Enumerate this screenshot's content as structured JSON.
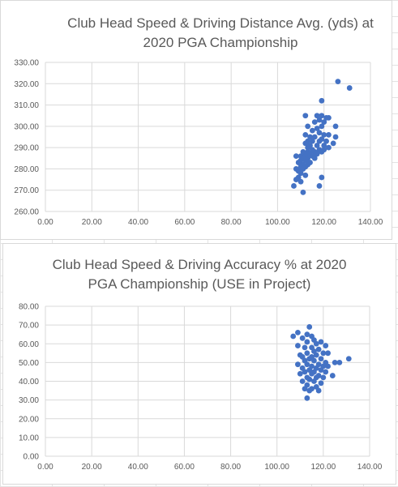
{
  "chart_data": [
    {
      "type": "scatter",
      "title": [
        "Club Head Speed & Driving Distance Avg. (yds) at",
        "2020 PGA Championship"
      ],
      "xlabel": "",
      "ylabel": "",
      "xlim": [
        0,
        140
      ],
      "ylim": [
        260,
        330
      ],
      "x_ticks": [
        "0.00",
        "20.00",
        "40.00",
        "60.00",
        "80.00",
        "100.00",
        "120.00",
        "140.00"
      ],
      "y_ticks": [
        "260.00",
        "270.00",
        "280.00",
        "290.00",
        "300.00",
        "310.00",
        "320.00",
        "330.00"
      ],
      "grid": true,
      "marker_color": "#4472c4",
      "points": [
        [
          126,
          321
        ],
        [
          131,
          318
        ],
        [
          119,
          312
        ],
        [
          112,
          305
        ],
        [
          117,
          305
        ],
        [
          119,
          305
        ],
        [
          121,
          304
        ],
        [
          122,
          304
        ],
        [
          120,
          302
        ],
        [
          116,
          302
        ],
        [
          118,
          303
        ],
        [
          125,
          300
        ],
        [
          113,
          300
        ],
        [
          119,
          300
        ],
        [
          117,
          299
        ],
        [
          115,
          298
        ],
        [
          112,
          296
        ],
        [
          118,
          297
        ],
        [
          120,
          296
        ],
        [
          122,
          296
        ],
        [
          125,
          295
        ],
        [
          114,
          295
        ],
        [
          116,
          295
        ],
        [
          119,
          294
        ],
        [
          113,
          293
        ],
        [
          115,
          293
        ],
        [
          118,
          293
        ],
        [
          121,
          293
        ],
        [
          124,
          292
        ],
        [
          112,
          292
        ],
        [
          114,
          291
        ],
        [
          117,
          291
        ],
        [
          120,
          291
        ],
        [
          122,
          290
        ],
        [
          113,
          290
        ],
        [
          115,
          289
        ],
        [
          118,
          289
        ],
        [
          120,
          289
        ],
        [
          111,
          288
        ],
        [
          113,
          288
        ],
        [
          116,
          288
        ],
        [
          119,
          288
        ],
        [
          112,
          287
        ],
        [
          114,
          287
        ],
        [
          117,
          287
        ],
        [
          110,
          286
        ],
        [
          112,
          286
        ],
        [
          115,
          286
        ],
        [
          108,
          286
        ],
        [
          111,
          285
        ],
        [
          113,
          285
        ],
        [
          116,
          285
        ],
        [
          110,
          284
        ],
        [
          112,
          284
        ],
        [
          114,
          283
        ],
        [
          109,
          283
        ],
        [
          111,
          282
        ],
        [
          113,
          282
        ],
        [
          110,
          281
        ],
        [
          112,
          281
        ],
        [
          108,
          280
        ],
        [
          111,
          280
        ],
        [
          109,
          279
        ],
        [
          110,
          278
        ],
        [
          112,
          277
        ],
        [
          109,
          276
        ],
        [
          108,
          275
        ],
        [
          119,
          276
        ],
        [
          110,
          274
        ],
        [
          107,
          272
        ],
        [
          118,
          272
        ],
        [
          111,
          269
        ]
      ]
    },
    {
      "type": "scatter",
      "title": [
        "Club Head Speed & Driving Accuracy % at 2020",
        "PGA Championship     (USE in Project)"
      ],
      "xlabel": "",
      "ylabel": "",
      "xlim": [
        0,
        140
      ],
      "ylim": [
        0,
        80
      ],
      "x_ticks": [
        "0.00",
        "20.00",
        "40.00",
        "60.00",
        "80.00",
        "100.00",
        "120.00",
        "140.00"
      ],
      "y_ticks": [
        "0.00",
        "10.00",
        "20.00",
        "30.00",
        "40.00",
        "50.00",
        "60.00",
        "70.00",
        "80.00"
      ],
      "grid": true,
      "marker_color": "#4472c4",
      "points": [
        [
          114,
          69
        ],
        [
          109,
          66
        ],
        [
          107,
          64
        ],
        [
          113,
          65
        ],
        [
          115,
          64
        ],
        [
          111,
          63
        ],
        [
          116,
          62
        ],
        [
          119,
          61
        ],
        [
          113,
          61
        ],
        [
          117,
          60
        ],
        [
          121,
          59
        ],
        [
          109,
          59
        ],
        [
          115,
          58
        ],
        [
          112,
          58
        ],
        [
          118,
          57
        ],
        [
          116,
          56
        ],
        [
          120,
          55
        ],
        [
          122,
          55
        ],
        [
          113,
          55
        ],
        [
          110,
          54
        ],
        [
          117,
          54
        ],
        [
          115,
          53
        ],
        [
          111,
          53
        ],
        [
          119,
          52
        ],
        [
          114,
          52
        ],
        [
          131,
          52
        ],
        [
          112,
          51
        ],
        [
          116,
          51
        ],
        [
          121,
          50
        ],
        [
          125,
          50
        ],
        [
          127,
          50
        ],
        [
          109,
          49
        ],
        [
          118,
          49
        ],
        [
          113,
          49
        ],
        [
          115,
          48
        ],
        [
          120,
          48
        ],
        [
          122,
          48
        ],
        [
          111,
          47
        ],
        [
          117,
          47
        ],
        [
          114,
          46
        ],
        [
          119,
          46
        ],
        [
          112,
          45
        ],
        [
          116,
          45
        ],
        [
          121,
          45
        ],
        [
          110,
          44
        ],
        [
          115,
          44
        ],
        [
          118,
          43
        ],
        [
          124,
          43
        ],
        [
          113,
          42
        ],
        [
          117,
          42
        ],
        [
          120,
          42
        ],
        [
          114,
          41
        ],
        [
          111,
          40
        ],
        [
          116,
          40
        ],
        [
          119,
          39
        ],
        [
          113,
          38
        ],
        [
          117,
          37
        ],
        [
          115,
          36
        ],
        [
          112,
          36
        ],
        [
          118,
          35
        ],
        [
          114,
          35
        ],
        [
          113,
          31
        ]
      ]
    }
  ]
}
